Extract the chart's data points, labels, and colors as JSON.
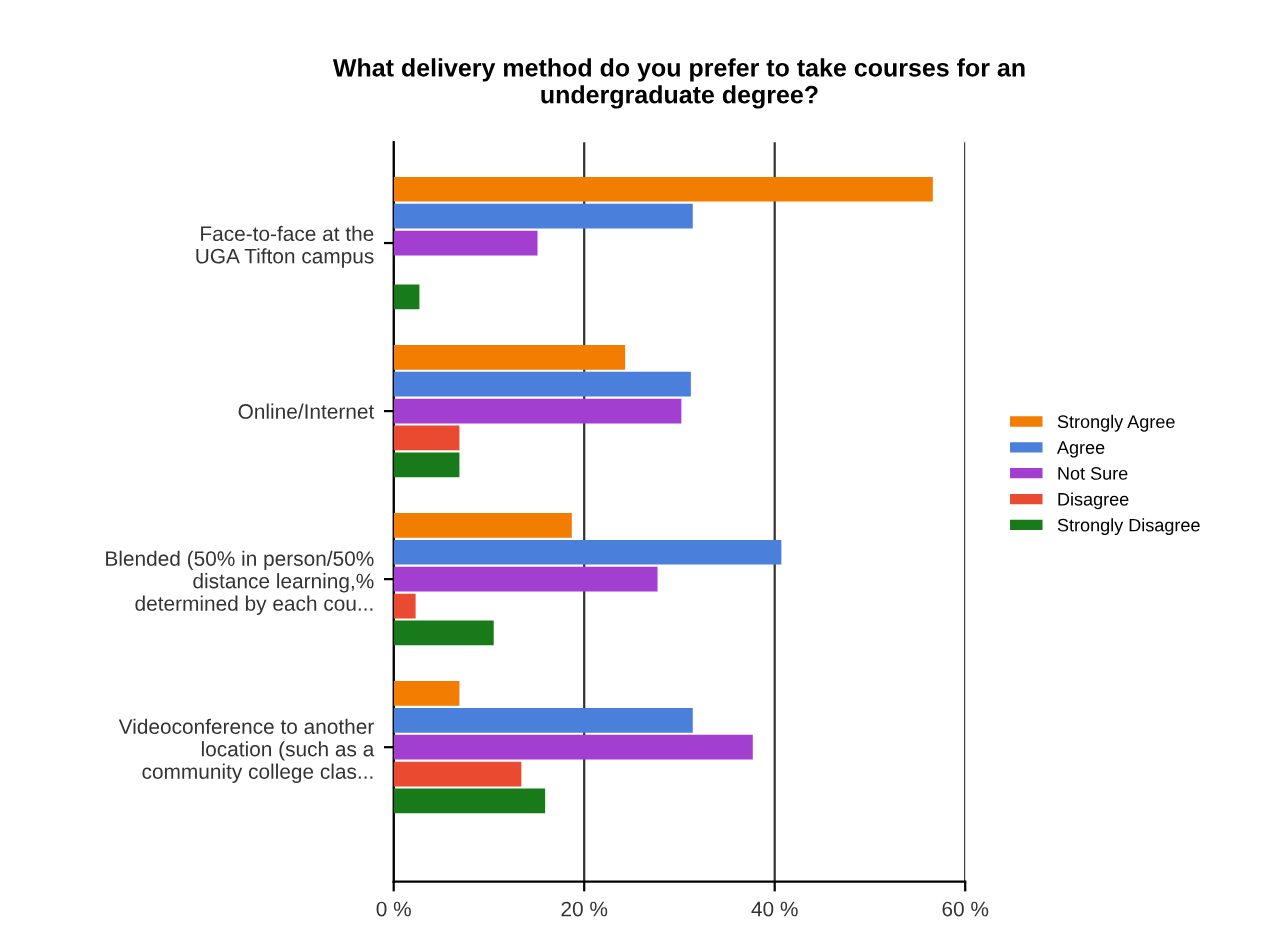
{
  "chart_data": {
    "type": "bar",
    "orientation": "horizontal",
    "title": "What delivery method do you prefer to take courses for an\nundergraduate degree?",
    "categories": [
      "Face-to-face at the\nUGA Tifton campus",
      "Online/Internet",
      "Blended (50% in person/50%\ndistance learning,%\ndetermined by each cou...",
      "Videoconference to another\nlocation (such as a\ncommunity college clas..."
    ],
    "series": [
      {
        "name": "Strongly Agree",
        "color": "#f27d00",
        "values": [
          56.6,
          24.3,
          18.7,
          6.9
        ]
      },
      {
        "name": "Agree",
        "color": "#4a7fdc",
        "values": [
          31.4,
          31.2,
          40.7,
          31.4
        ]
      },
      {
        "name": "Not Sure",
        "color": "#a23ed0",
        "values": [
          15.1,
          30.2,
          27.7,
          37.7
        ]
      },
      {
        "name": "Disagree",
        "color": "#ea4a2f",
        "values": [
          0,
          6.9,
          2.3,
          13.4
        ]
      },
      {
        "name": "Strongly Disagree",
        "color": "#197a19",
        "values": [
          2.7,
          6.9,
          10.5,
          15.9
        ]
      }
    ],
    "xlim": [
      0,
      60
    ],
    "xticks": [
      {
        "value": 0,
        "label": "0 %"
      },
      {
        "value": 20,
        "label": "20 %"
      },
      {
        "value": 40,
        "label": "40 %"
      },
      {
        "value": 60,
        "label": "60 %"
      }
    ],
    "grid": "x",
    "legend": "right"
  }
}
